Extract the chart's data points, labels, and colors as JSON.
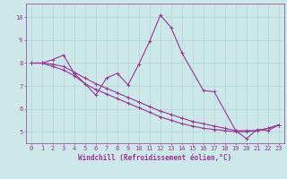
{
  "background_color": "#cce8e8",
  "line_color": "#993399",
  "marker": "+",
  "markersize": 3,
  "linewidth": 0.8,
  "xlabel": "Windchill (Refroidissement éolien,°C)",
  "xlabel_fontsize": 5.5,
  "xlim": [
    -0.5,
    23.5
  ],
  "ylim": [
    4.5,
    10.6
  ],
  "yticks": [
    5,
    6,
    7,
    8,
    9,
    10
  ],
  "xticks": [
    0,
    1,
    2,
    3,
    4,
    5,
    6,
    7,
    8,
    9,
    10,
    11,
    12,
    13,
    14,
    15,
    16,
    17,
    18,
    19,
    20,
    21,
    22,
    23
  ],
  "grid_color": "#b0d8d8",
  "tick_color": "#993399",
  "tick_fontsize": 5.0,
  "series1_x": [
    0,
    1,
    2,
    3,
    4,
    5,
    6,
    7,
    8,
    9,
    10,
    11,
    12,
    13,
    14,
    16,
    17,
    19,
    20,
    21,
    22,
    23
  ],
  "series1_y": [
    8.0,
    8.0,
    8.15,
    8.35,
    7.55,
    7.1,
    6.6,
    7.35,
    7.55,
    7.05,
    7.95,
    8.95,
    10.1,
    9.55,
    8.45,
    6.8,
    6.75,
    5.05,
    4.7,
    5.1,
    5.05,
    5.3
  ],
  "series2_x": [
    0,
    1,
    2,
    3,
    4,
    5,
    6,
    7,
    8,
    9,
    10,
    11,
    12,
    13,
    14,
    15,
    16,
    17,
    18,
    19,
    20,
    21,
    22,
    23
  ],
  "series2_y": [
    8.0,
    8.0,
    7.95,
    7.85,
    7.6,
    7.35,
    7.1,
    6.9,
    6.7,
    6.5,
    6.3,
    6.1,
    5.9,
    5.75,
    5.6,
    5.45,
    5.35,
    5.25,
    5.15,
    5.05,
    5.05,
    5.05,
    5.15,
    5.3
  ],
  "series3_x": [
    0,
    1,
    2,
    3,
    4,
    5,
    6,
    7,
    8,
    9,
    10,
    11,
    12,
    13,
    14,
    15,
    16,
    17,
    18,
    19,
    20,
    21,
    22,
    23
  ],
  "series3_y": [
    8.0,
    8.0,
    7.85,
    7.7,
    7.45,
    7.1,
    6.85,
    6.65,
    6.45,
    6.25,
    6.05,
    5.85,
    5.65,
    5.5,
    5.35,
    5.25,
    5.15,
    5.1,
    5.05,
    5.0,
    5.0,
    5.05,
    5.15,
    5.3
  ]
}
